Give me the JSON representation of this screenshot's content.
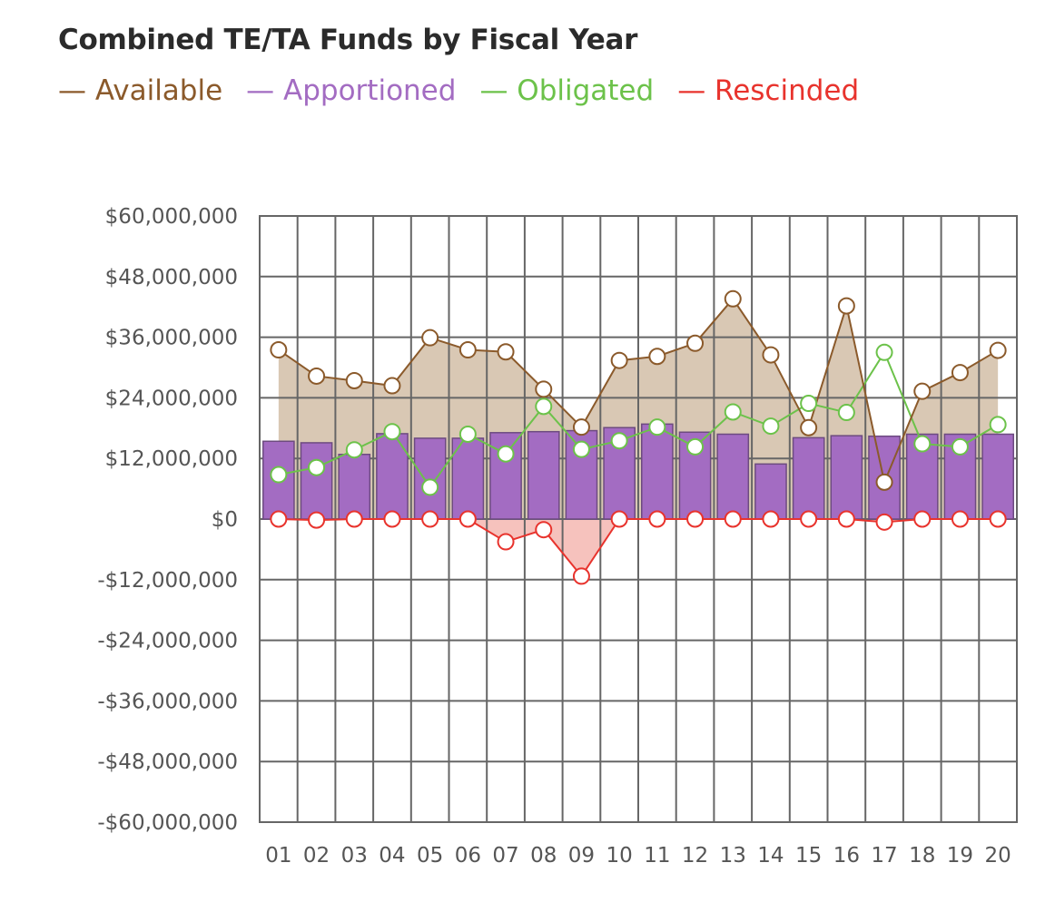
{
  "chart_data": {
    "type": "bar",
    "title": "Combined TE/TA Funds by Fiscal Year",
    "xlabel": "",
    "ylabel": "",
    "ylim": [
      -60000000,
      60000000
    ],
    "grid": true,
    "legend_position": "top-left",
    "categories": [
      "01",
      "02",
      "03",
      "04",
      "05",
      "06",
      "07",
      "08",
      "09",
      "10",
      "11",
      "12",
      "13",
      "14",
      "15",
      "16",
      "17",
      "18",
      "19",
      "20"
    ],
    "y_tick_values": [
      60000000,
      48000000,
      36000000,
      24000000,
      12000000,
      0,
      -12000000,
      -24000000,
      -36000000,
      -48000000,
      -60000000
    ],
    "y_tick_labels": [
      "$60,000,000",
      "$48,000,000",
      "$36,000,000",
      "$24,000,000",
      "$12,000,000",
      "$0",
      "-$12,000,000",
      "-$24,000,000",
      "-$36,000,000",
      "-$48,000,000",
      "-$60,000,000"
    ],
    "series": [
      {
        "name": "Available",
        "type": "area-line",
        "color": "#8b5a2b",
        "fill": "#d9c8b4",
        "values": [
          33500000,
          28300000,
          27400000,
          26400000,
          35900000,
          33500000,
          33100000,
          25700000,
          18200000,
          31400000,
          32200000,
          34800000,
          43600000,
          32500000,
          18100000,
          42200000,
          7300000,
          25300000,
          29000000,
          33400000
        ]
      },
      {
        "name": "Apportioned",
        "type": "bar",
        "color": "#a36cc2",
        "values": [
          15400000,
          15100000,
          12800000,
          16900000,
          16000000,
          16000000,
          17100000,
          17300000,
          17500000,
          18100000,
          18800000,
          17200000,
          16800000,
          10900000,
          16100000,
          16500000,
          16400000,
          16800000,
          16800000,
          16800000
        ]
      },
      {
        "name": "Obligated",
        "type": "line",
        "color": "#6cc24a",
        "values": [
          8800000,
          10200000,
          13700000,
          17300000,
          6300000,
          16800000,
          12900000,
          22300000,
          13800000,
          15500000,
          18200000,
          14300000,
          21200000,
          18400000,
          22900000,
          21100000,
          33000000,
          14900000,
          14300000,
          18700000
        ]
      },
      {
        "name": "Rescinded",
        "type": "area-line",
        "color": "#e8332d",
        "fill": "#f6c2bd",
        "values": [
          0,
          -200000,
          0,
          0,
          0,
          0,
          -4500000,
          -2100000,
          -11300000,
          0,
          0,
          0,
          0,
          0,
          0,
          0,
          -600000,
          0,
          0,
          0
        ]
      }
    ]
  },
  "legend": {
    "items": [
      {
        "label": "— Available",
        "color": "#8b5a2b"
      },
      {
        "label": "— Apportioned",
        "color": "#a36cc2"
      },
      {
        "label": "— Obligated",
        "color": "#6cc24a"
      },
      {
        "label": "— Rescinded",
        "color": "#e8332d"
      }
    ]
  }
}
